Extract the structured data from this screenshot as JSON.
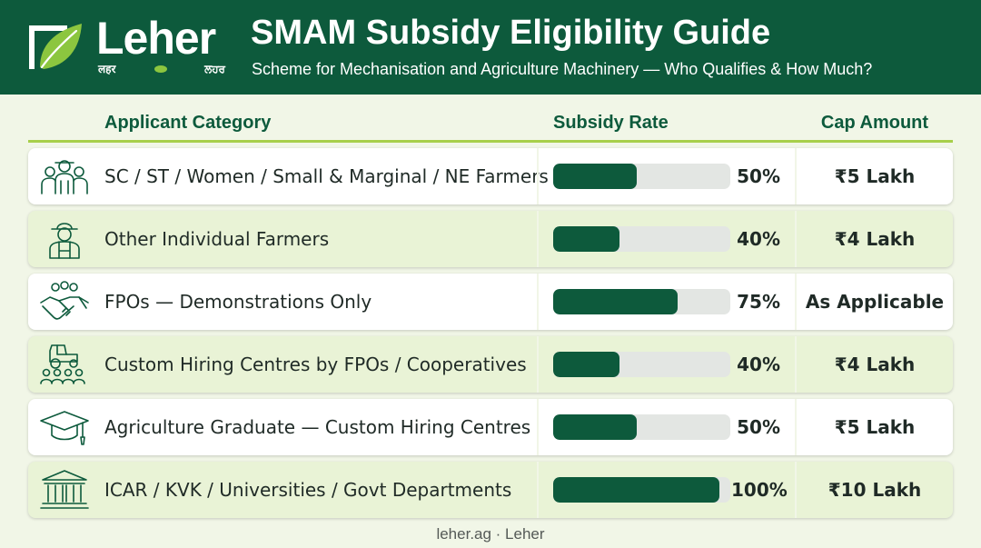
{
  "header": {
    "brand": "Leher",
    "brand_sub_left": "लहर",
    "brand_sub_right": "ਲਹਰ",
    "title": "SMAM Subsidy Eligibility Guide",
    "subtitle": "Scheme for Mechanisation and Agriculture Machinery — Who Qualifies & How Much?",
    "logo_icon": "leaf-logo-icon"
  },
  "columns": {
    "category": "Applicant Category",
    "rate": "Subsidy Rate",
    "cap": "Cap Amount"
  },
  "rows": [
    {
      "icon": "farmer-group-icon",
      "label": "SC / ST / Women / Small & Marginal / NE Farmers",
      "rate_label": "50%",
      "rate_value": 50,
      "cap": "₹5 Lakh"
    },
    {
      "icon": "farmer-icon",
      "label": "Other Individual Farmers",
      "rate_label": "40%",
      "rate_value": 40,
      "cap": "₹4 Lakh"
    },
    {
      "icon": "handshake-icon",
      "label": "FPOs — Demonstrations Only",
      "rate_label": "75%",
      "rate_value": 75,
      "cap": "As Applicable"
    },
    {
      "icon": "tractor-group-icon",
      "label": "Custom Hiring Centres by FPOs / Cooperatives",
      "rate_label": "40%",
      "rate_value": 40,
      "cap": "₹4 Lakh"
    },
    {
      "icon": "graduation-cap-icon",
      "label": "Agriculture Graduate — Custom Hiring Centres",
      "rate_label": "50%",
      "rate_value": 50,
      "cap": "₹5 Lakh"
    },
    {
      "icon": "institution-building-icon",
      "label": "ICAR / KVK / Universities / Govt Departments",
      "rate_label": "100%",
      "rate_value": 100,
      "cap": "₹10 Lakh"
    }
  ],
  "footer": "leher.ag · Leher",
  "colors": {
    "header_bg": "#0d5a3c",
    "bar_fill": "#0d5a3c",
    "bar_track": "#e3e6e3",
    "accent_rule": "#a7cf4a",
    "page_bg": "#f1f6e7"
  }
}
